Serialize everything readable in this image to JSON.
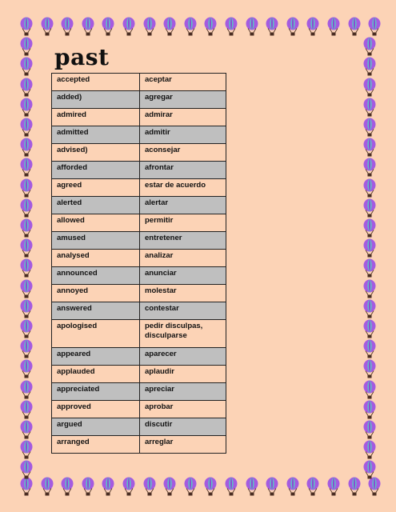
{
  "page": {
    "title": "past",
    "border_icon": "hot-air-balloon-icon",
    "colors": {
      "background": "#fcd3b6",
      "row_alt": "#bfbfbf",
      "balloon_purple": "#a45be0",
      "balloon_teal": "#5ec2c6",
      "balloon_basket": "#4a2d22"
    }
  },
  "vocab": {
    "rows": [
      {
        "en": "accepted",
        "es": "aceptar"
      },
      {
        "en": "added)",
        "es": "agregar"
      },
      {
        "en": "admired",
        "es": "admirar"
      },
      {
        "en": "admitted",
        "es": "admitir"
      },
      {
        "en": "advised)",
        "es": "aconsejar"
      },
      {
        "en": "afforded",
        "es": "afrontar"
      },
      {
        "en": "agreed",
        "es": "estar de acuerdo"
      },
      {
        "en": "alerted",
        "es": "alertar"
      },
      {
        "en": "allowed",
        "es": "permitir"
      },
      {
        "en": "amused",
        "es": "entretener"
      },
      {
        "en": "analysed",
        "es": "analizar"
      },
      {
        "en": "announced",
        "es": "anunciar"
      },
      {
        "en": "annoyed",
        "es": "molestar"
      },
      {
        "en": "answered",
        "es": "contestar"
      },
      {
        "en": "apologised",
        "es": "pedir disculpas, disculparse"
      },
      {
        "en": "appeared",
        "es": "aparecer"
      },
      {
        "en": "applauded",
        "es": "aplaudir"
      },
      {
        "en": "appreciated",
        "es": "apreciar"
      },
      {
        "en": "approved",
        "es": "aprobar"
      },
      {
        "en": "argued",
        "es": "discutir"
      },
      {
        "en": "arranged",
        "es": "arreglar"
      }
    ]
  }
}
